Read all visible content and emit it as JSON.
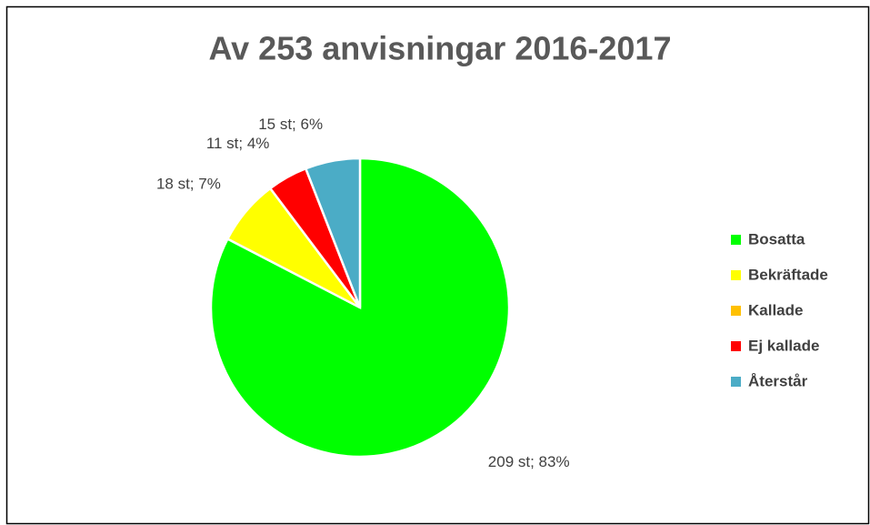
{
  "chart_data": {
    "type": "pie",
    "title": "Av 253 anvisningar 2016-2017",
    "categories": [
      "Bosatta",
      "Bekräftade",
      "Kallade",
      "Ej kallade",
      "Återstår"
    ],
    "values": [
      209,
      18,
      0,
      11,
      15
    ],
    "value_labels": [
      "209 st; 83%",
      "18 st; 7%",
      null,
      "11 st; 4%",
      "15 st; 6%"
    ],
    "colors": [
      "#00ff00",
      "#ffff00",
      "#ffc000",
      "#ff0000",
      "#4bacc6"
    ],
    "legend": "right"
  }
}
